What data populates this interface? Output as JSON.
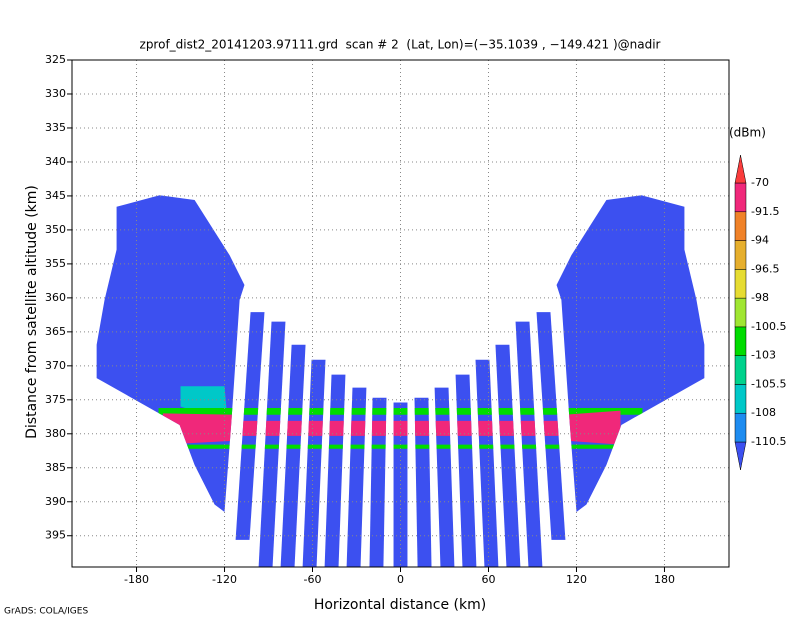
{
  "chart_data": {
    "type": "heatmap",
    "title": "zprof_dist2_20141203.97111.grd  scan # 2  (Lat, Lon)=(−35.1039 , −149.421 )@nadir",
    "xlabel": "Horizontal distance (km)",
    "ylabel": "Distance from satellite altitude (km)",
    "footer": "GrADS: COLA/IGES",
    "xlim": [
      -224,
      224
    ],
    "ylim": [
      325,
      399.6
    ],
    "xticks": [
      -180,
      -120,
      -60,
      0,
      60,
      120,
      180
    ],
    "yticks": [
      325,
      330,
      335,
      340,
      345,
      350,
      355,
      360,
      365,
      370,
      375,
      380,
      385,
      390,
      395
    ],
    "grid": true,
    "colorbar": {
      "unit": "(dBm)",
      "levels": [
        -110.5,
        -108,
        -105.5,
        -103,
        -100.5,
        -98,
        -96.5,
        -94,
        -91.5,
        -70
      ],
      "colors": [
        "#3c50f0",
        "#1e8cf0",
        "#00c8c8",
        "#00d28c",
        "#00dc00",
        "#a0e632",
        "#e6dc32",
        "#e6af2d",
        "#f08228",
        "#f0287a",
        "#fa3c3c"
      ]
    },
    "beam_width": 9.5,
    "regions": [
      {
        "points": [
          [
            -193.6,
            346.6
          ],
          [
            -164.3,
            344.9
          ],
          [
            -140.4,
            345.6
          ],
          [
            -116.6,
            353.7
          ],
          [
            -106.4,
            358.1
          ],
          [
            -109.7,
            360.3
          ],
          [
            -115.2,
            377.9
          ],
          [
            -120.0,
            391.5
          ],
          [
            -126.8,
            390.4
          ],
          [
            -140.4,
            384.6
          ],
          [
            -150.6,
            378.7
          ],
          [
            -171.1,
            376.2
          ],
          [
            -207.2,
            371.8
          ],
          [
            -207.2,
            366.9
          ],
          [
            -201.8,
            360.3
          ],
          [
            -193.6,
            352.9
          ]
        ],
        "value": -112
      },
      {
        "points": [
          [
            193.6,
            346.6
          ],
          [
            164.3,
            344.9
          ],
          [
            140.4,
            345.6
          ],
          [
            116.6,
            353.7
          ],
          [
            106.4,
            358.1
          ],
          [
            109.7,
            360.3
          ],
          [
            115.2,
            377.9
          ],
          [
            120.0,
            391.5
          ],
          [
            126.8,
            390.4
          ],
          [
            140.4,
            384.6
          ],
          [
            150.6,
            378.7
          ],
          [
            171.1,
            376.2
          ],
          [
            207.2,
            371.8
          ],
          [
            207.2,
            366.9
          ],
          [
            201.8,
            360.3
          ],
          [
            193.6,
            352.9
          ]
        ],
        "value": -112
      }
    ],
    "beams": [
      {
        "x": [
          -97.5,
          -107.7
        ],
        "y": [
          362.1,
          395.6
        ],
        "value": -112
      },
      {
        "x": [
          -83.2,
          -92.0
        ],
        "y": [
          363.5,
          399.6
        ],
        "value": -112
      },
      {
        "x": [
          -69.5,
          -77.0
        ],
        "y": [
          366.9,
          399.6
        ],
        "value": -112
      },
      {
        "x": [
          -55.9,
          -62.0
        ],
        "y": [
          369.1,
          399.6
        ],
        "value": -112
      },
      {
        "x": [
          -42.3,
          -47.0
        ],
        "y": [
          371.3,
          399.6
        ],
        "value": -112
      },
      {
        "x": [
          -28.0,
          -32.0
        ],
        "y": [
          373.2,
          399.6
        ],
        "value": -112
      },
      {
        "x": [
          -14.3,
          -16.4
        ],
        "y": [
          374.7,
          399.6
        ],
        "value": -112
      },
      {
        "x": [
          0,
          0
        ],
        "y": [
          375.4,
          399.6
        ],
        "value": -112
      },
      {
        "x": [
          14.3,
          16.4
        ],
        "y": [
          374.7,
          399.6
        ],
        "value": -112
      },
      {
        "x": [
          28.0,
          32.0
        ],
        "y": [
          373.2,
          399.6
        ],
        "value": -112
      },
      {
        "x": [
          42.3,
          47.0
        ],
        "y": [
          371.3,
          399.6
        ],
        "value": -112
      },
      {
        "x": [
          55.9,
          62.0
        ],
        "y": [
          369.1,
          399.6
        ],
        "value": -112
      },
      {
        "x": [
          69.5,
          77.0
        ],
        "y": [
          366.9,
          399.6
        ],
        "value": -112
      },
      {
        "x": [
          83.2,
          92.0
        ],
        "y": [
          363.5,
          399.6
        ],
        "value": -112
      },
      {
        "x": [
          97.5,
          107.7
        ],
        "y": [
          362.1,
          395.6
        ],
        "value": -112
      }
    ],
    "surface": [
      {
        "points": [
          [
            -150,
            373
          ],
          [
            -120,
            373
          ],
          [
            -118,
            378
          ],
          [
            -150,
            376
          ]
        ],
        "value": -107
      },
      {
        "points": [
          [
            -165,
            376.2
          ],
          [
            165,
            376.2
          ],
          [
            165,
            377.2
          ],
          [
            -165,
            377.2
          ]
        ],
        "value": -101
      },
      {
        "points": [
          [
            -165,
            381.6
          ],
          [
            165,
            381.6
          ],
          [
            165,
            382.2
          ],
          [
            -165,
            382.2
          ]
        ],
        "value": -101
      },
      {
        "points": [
          [
            -115,
            378.1
          ],
          [
            115,
            378.1
          ],
          [
            115,
            380.3
          ],
          [
            -115,
            380.3
          ]
        ],
        "value": -80
      },
      {
        "points": [
          [
            -162,
            377
          ],
          [
            -112,
            377.2
          ],
          [
            -112,
            381
          ],
          [
            -162,
            381.6
          ]
        ],
        "value": -80
      },
      {
        "points": [
          [
            112,
            377.2
          ],
          [
            150,
            376.6
          ],
          [
            150,
            381.6
          ],
          [
            112,
            381
          ]
        ],
        "value": -80
      }
    ]
  }
}
